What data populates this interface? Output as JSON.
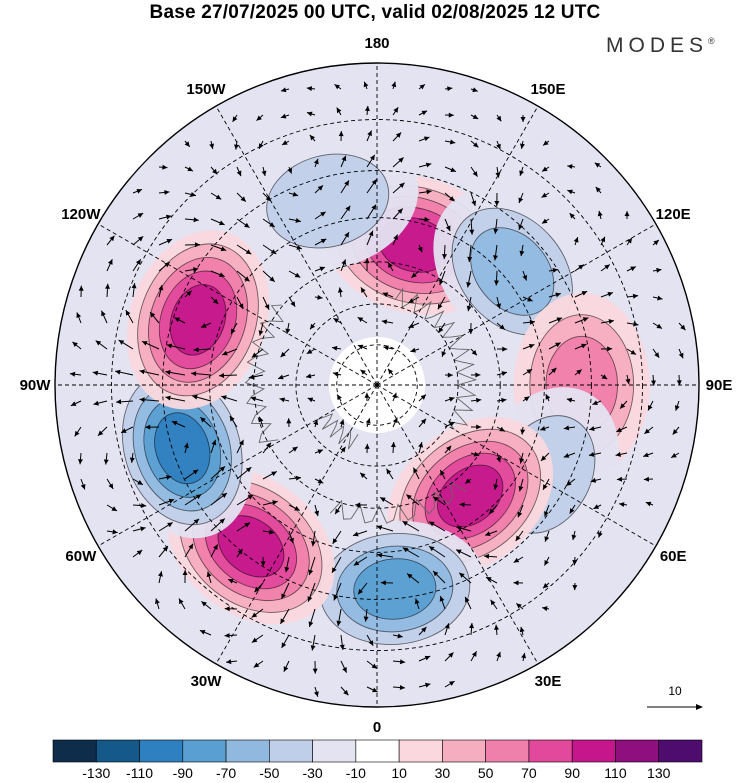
{
  "title": "Base 27/07/2025 00 UTC, valid 02/08/2025 12 UTC",
  "brand": "MODES",
  "brand_mark": "®",
  "chart_data": {
    "type": "heatmap",
    "projection": "north-polar-stereographic",
    "field": "filled anomaly contours with wind vectors",
    "longitude_labels": [
      {
        "text": "180",
        "lon": 180
      },
      {
        "text": "150E",
        "lon": 150
      },
      {
        "text": "120E",
        "lon": 120
      },
      {
        "text": "90E",
        "lon": 90
      },
      {
        "text": "60E",
        "lon": 60
      },
      {
        "text": "30E",
        "lon": 30
      },
      {
        "text": "0",
        "lon": 0
      },
      {
        "text": "30W",
        "lon": -30
      },
      {
        "text": "60W",
        "lon": -60
      },
      {
        "text": "90W",
        "lon": -90
      },
      {
        "text": "120W",
        "lon": -120
      },
      {
        "text": "150W",
        "lon": -150
      }
    ],
    "latitude_circles": [
      80,
      70,
      60,
      50,
      40,
      30,
      20
    ],
    "anomaly_centers": [
      {
        "lon": 165,
        "lat": 55,
        "value": 115
      },
      {
        "lon": 130,
        "lat": 48,
        "value": -60
      },
      {
        "lon": 90,
        "lat": 42,
        "value": 75
      },
      {
        "lon": 62,
        "lat": 45,
        "value": -55
      },
      {
        "lon": 40,
        "lat": 55,
        "value": 105
      },
      {
        "lon": 5,
        "lat": 42,
        "value": -95
      },
      {
        "lon": -38,
        "lat": 42,
        "value": 100
      },
      {
        "lon": -72,
        "lat": 42,
        "value": -100
      },
      {
        "lon": -110,
        "lat": 45,
        "value": 110
      },
      {
        "lon": -165,
        "lat": 45,
        "value": -55
      }
    ],
    "vector_reference": {
      "label": "10",
      "magnitude": 10
    },
    "colorbar": {
      "ticks": [
        "-130",
        "-110",
        "-90",
        "-70",
        "-50",
        "-30",
        "-10",
        "10",
        "30",
        "50",
        "70",
        "90",
        "110",
        "130"
      ],
      "colors": [
        "#0e2d4a",
        "#14598a",
        "#2f80c0",
        "#5a9fd2",
        "#91b9e0",
        "#c0cfe9",
        "#e3e3f1",
        "#ffffff",
        "#fad8dd",
        "#f5aec0",
        "#ef7fab",
        "#e2489b",
        "#c5178b",
        "#8f0f7e",
        "#4e0c6e"
      ]
    }
  }
}
